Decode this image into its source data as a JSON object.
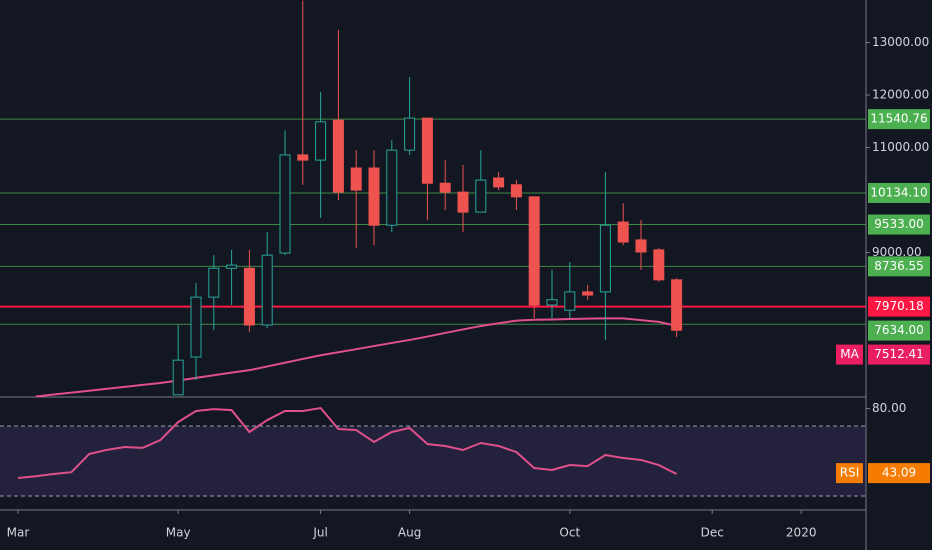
{
  "chart_data": {
    "type": "candlestick",
    "categories": [
      "Mar",
      null,
      null,
      null,
      null,
      null,
      null,
      null,
      null,
      "May",
      null,
      null,
      null,
      null,
      null,
      null,
      null,
      "Jul",
      null,
      null,
      null,
      null,
      "Aug",
      null,
      null,
      null,
      null,
      null,
      null,
      null,
      null,
      "Oct",
      null,
      null,
      null,
      null,
      null,
      null,
      null,
      "Dec",
      null,
      null,
      null,
      null,
      "2020",
      null,
      null,
      null
    ],
    "open": [
      null,
      null,
      null,
      null,
      null,
      null,
      null,
      null,
      null,
      6290,
      7010,
      8150,
      8700,
      8700,
      7620,
      8990,
      10860,
      10760,
      11520,
      10610,
      10610,
      9520,
      10950,
      11560,
      10320,
      10150,
      9770,
      10420,
      10290,
      10060,
      8000,
      7900,
      8250,
      8250,
      9580,
      9240,
      9050,
      8480,
      null,
      null,
      null,
      null,
      null,
      null,
      null,
      null,
      null,
      null
    ],
    "high": [
      null,
      null,
      null,
      null,
      null,
      null,
      null,
      null,
      null,
      7620,
      8420,
      8950,
      9050,
      9050,
      9390,
      11330,
      13800,
      12060,
      13240,
      10950,
      10950,
      11140,
      12340,
      11560,
      10760,
      10670,
      10950,
      10530,
      10380,
      10060,
      8670,
      8820,
      8380,
      10530,
      9940,
      9620,
      9090,
      8510,
      null,
      null,
      null,
      null,
      null,
      null,
      null,
      null,
      null,
      null
    ],
    "low": [
      null,
      null,
      null,
      null,
      null,
      null,
      null,
      null,
      null,
      6340,
      6570,
      7520,
      8000,
      7490,
      7560,
      8950,
      10290,
      9660,
      10000,
      9090,
      9140,
      9390,
      10860,
      9620,
      9810,
      9390,
      9770,
      10190,
      9810,
      7750,
      7750,
      7750,
      8100,
      7330,
      9140,
      8670,
      8440,
      7390,
      null,
      null,
      null,
      null,
      null,
      null,
      null,
      null,
      null,
      null
    ],
    "close": [
      null,
      null,
      null,
      null,
      null,
      null,
      null,
      null,
      null,
      6950,
      8150,
      8700,
      8760,
      7620,
      8950,
      10860,
      10760,
      11490,
      10150,
      10190,
      9520,
      10950,
      11560,
      10320,
      10150,
      9770,
      10380,
      10250,
      10060,
      8000,
      8100,
      8250,
      8190,
      9520,
      9200,
      9010,
      8480,
      7520,
      null,
      null,
      null,
      null,
      null,
      null,
      null,
      null,
      null,
      null
    ],
    "up_color": "#26a69a",
    "down_color": "#ef5350",
    "ylim": [
      6248,
      13810
    ],
    "yticks": [
      {
        "value": 9000,
        "label": "9000.00"
      },
      {
        "value": 11000,
        "label": "11000.00"
      },
      {
        "value": 12000,
        "label": "12000.00"
      },
      {
        "value": 13000,
        "label": "13000.00"
      }
    ],
    "levels": {
      "values": [
        11540.76,
        10134.1,
        9533.0,
        8736.55,
        7970.18,
        7634.0
      ],
      "value_labels": [
        "11540.76",
        "10134.10",
        "9533.00",
        "8736.55",
        "7970.18",
        "7634.00"
      ],
      "colors": [
        "#4caf50",
        "#4caf50",
        "#4caf50",
        "#4caf50",
        "#ff1744",
        "#4caf50"
      ]
    },
    "ma": {
      "name": "MA",
      "color": "#e0508a",
      "values": [
        null,
        6258,
        6295,
        6331,
        6367,
        6405,
        6441,
        6479,
        6514,
        6563,
        6613,
        6662,
        6712,
        6759,
        6830,
        6900,
        6973,
        7043,
        7100,
        7159,
        7218,
        7278,
        7335,
        7399,
        7468,
        7535,
        7601,
        7653,
        7702,
        7719,
        7725,
        7733,
        7740,
        7746,
        7746,
        7712,
        7678,
        7603,
        null,
        null,
        null,
        null,
        null,
        null,
        null,
        null,
        null,
        null
      ],
      "last": 7512.41,
      "last_label": "7512.41"
    },
    "rsi": {
      "name": "RSI",
      "color": "#e0508a",
      "label_color": "#f57c00",
      "values": [
        40.3,
        41.3,
        42.6,
        43.6,
        54,
        56.4,
        58,
        57.5,
        62,
        72.3,
        78.6,
        79.7,
        79.1,
        66.6,
        73.4,
        78.6,
        78.6,
        80.3,
        68.3,
        67.7,
        60.9,
        66.6,
        68.9,
        59.7,
        58.6,
        56.3,
        60.3,
        58.6,
        55.1,
        46,
        44.9,
        47.7,
        47.1,
        53.4,
        51.7,
        50.6,
        47.7,
        42.6,
        null,
        null,
        null,
        null,
        null,
        null,
        null,
        null,
        null,
        null
      ],
      "ylim": [
        22,
        86.6
      ],
      "yticks": [
        {
          "value": 80,
          "label": "80.00"
        }
      ],
      "bands": [
        70,
        30
      ],
      "last": 43.09,
      "last_label": "43.09"
    }
  }
}
